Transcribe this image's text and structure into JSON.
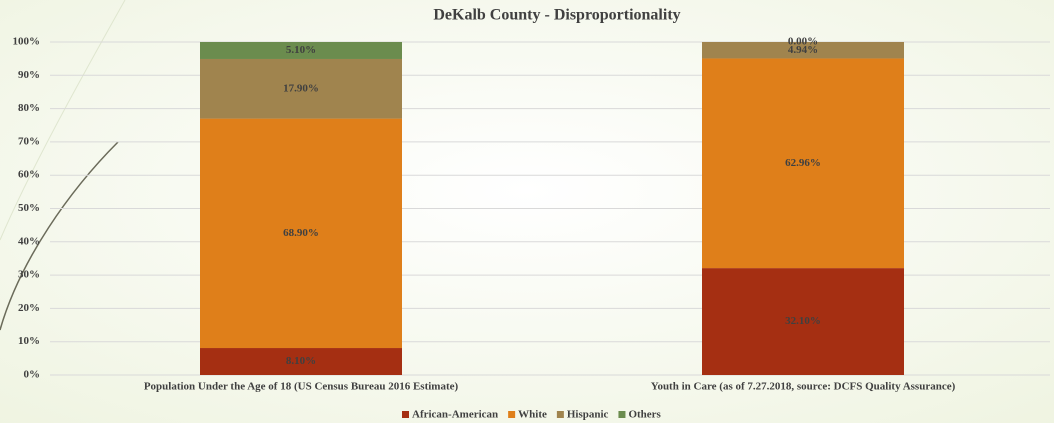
{
  "chart_data": {
    "type": "stacked_bar",
    "title": "DeKalb County - Disproportionality",
    "categories": [
      "Population Under the Age of 18 (US Census Bureau 2016 Estimate)",
      "Youth in Care (as of 7.27.2018, source: DCFS Quality Assurance)"
    ],
    "series": [
      {
        "name": "African-American",
        "color": "#a52f12",
        "values": [
          8.1,
          32.1
        ],
        "value_labels": [
          "8.10%",
          "32.10%"
        ]
      },
      {
        "name": "White",
        "color": "#df7f1a",
        "values": [
          68.9,
          62.96
        ],
        "value_labels": [
          "68.90%",
          "62.96%"
        ]
      },
      {
        "name": "Hispanic",
        "color": "#a0844e",
        "values": [
          17.9,
          4.94
        ],
        "value_labels": [
          "17.90%",
          "4.94%"
        ]
      },
      {
        "name": "Others",
        "color": "#6b8c4e",
        "values": [
          5.1,
          0.0
        ],
        "value_labels": [
          "5.10%",
          "0.00%"
        ]
      }
    ],
    "ylim": [
      0,
      100
    ],
    "yticks": [
      {
        "value": 0,
        "label": "0%"
      },
      {
        "value": 10,
        "label": "10%"
      },
      {
        "value": 20,
        "label": "20%"
      },
      {
        "value": 30,
        "label": "30%"
      },
      {
        "value": 40,
        "label": "40%"
      },
      {
        "value": 50,
        "label": "50%"
      },
      {
        "value": 60,
        "label": "60%"
      },
      {
        "value": 70,
        "label": "70%"
      },
      {
        "value": 80,
        "label": "80%"
      },
      {
        "value": 90,
        "label": "90%"
      },
      {
        "value": 100,
        "label": "100%"
      }
    ],
    "grid": true
  }
}
